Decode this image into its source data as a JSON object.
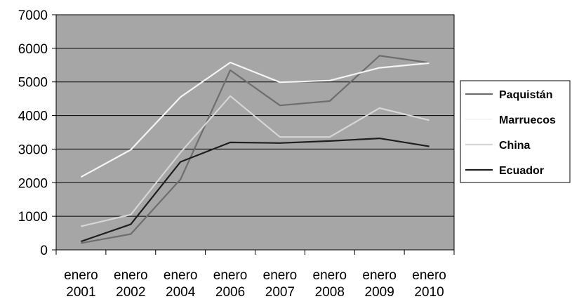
{
  "chart_data": {
    "type": "line",
    "title": "",
    "xlabel": "",
    "ylabel": "",
    "ylim": [
      0,
      7000
    ],
    "yticks": [
      0,
      1000,
      2000,
      3000,
      4000,
      5000,
      6000,
      7000
    ],
    "grid": true,
    "legend_position": "right",
    "plot_background": "#a6a6a6",
    "categories": [
      [
        "enero",
        "2001"
      ],
      [
        "enero",
        "2002"
      ],
      [
        "enero",
        "2004"
      ],
      [
        "enero",
        "2006"
      ],
      [
        "enero",
        "2007"
      ],
      [
        "enero",
        "2008"
      ],
      [
        "enero",
        "2009"
      ],
      [
        "enero",
        "2010"
      ]
    ],
    "series": [
      {
        "name": "Paquistán",
        "color": "#6e6e6e",
        "values": [
          200,
          470,
          2100,
          5350,
          4300,
          4430,
          5780,
          5570
        ]
      },
      {
        "name": "Marruecos",
        "color": "#f4f4f4",
        "values": [
          2170,
          2980,
          4550,
          5580,
          4990,
          5040,
          5420,
          5560
        ]
      },
      {
        "name": "China",
        "color": "#d6d6d6",
        "values": [
          700,
          1050,
          2900,
          4580,
          3360,
          3360,
          4220,
          3860
        ]
      },
      {
        "name": "Ecuador",
        "color": "#1e1e1e",
        "values": [
          250,
          760,
          2620,
          3200,
          3180,
          3240,
          3320,
          3080
        ]
      }
    ]
  }
}
